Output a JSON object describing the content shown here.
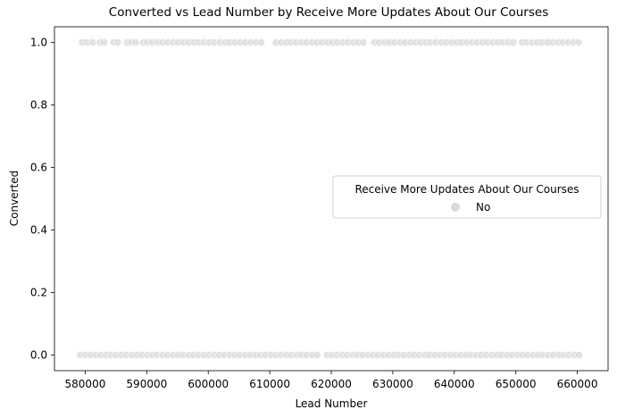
{
  "chart_data": {
    "type": "scatter",
    "title": "Converted vs Lead Number by Receive More Updates About Our Courses",
    "xlabel": "Lead Number",
    "ylabel": "Converted",
    "xlim": [
      575000,
      665000
    ],
    "ylim": [
      -0.05,
      1.05
    ],
    "xticks": [
      580000,
      590000,
      600000,
      610000,
      620000,
      630000,
      640000,
      650000,
      660000
    ],
    "yticks": [
      0.0,
      0.2,
      0.4,
      0.6,
      0.8,
      1.0
    ],
    "xtick_labels": [
      "580000",
      "590000",
      "600000",
      "610000",
      "620000",
      "630000",
      "640000",
      "650000",
      "660000"
    ],
    "ytick_labels": [
      "0.0",
      "0.2",
      "0.4",
      "0.6",
      "0.8",
      "1.0"
    ],
    "grid": false,
    "legend": {
      "title": "Receive More Updates About Our Courses",
      "placement": "center-right",
      "entries": [
        "No"
      ]
    },
    "series": [
      {
        "name": "No",
        "color": "#d9d9d9",
        "points_y1_x": [
          579500,
          580300,
          581200,
          582400,
          583100,
          584600,
          585300,
          586800,
          587500,
          588200,
          589400,
          590100,
          590900,
          591800,
          592600,
          593400,
          594300,
          595100,
          596000,
          596800,
          597700,
          598500,
          599300,
          600200,
          601000,
          601900,
          602700,
          603500,
          604400,
          605200,
          606000,
          606900,
          607700,
          608600,
          611000,
          611800,
          612700,
          613500,
          614300,
          615200,
          616000,
          616900,
          617700,
          618500,
          619400,
          620200,
          621000,
          621900,
          622700,
          623600,
          624400,
          625200,
          627000,
          627800,
          628700,
          629500,
          630300,
          631200,
          632000,
          632900,
          633700,
          634500,
          635400,
          636200,
          637000,
          637900,
          638700,
          639600,
          640400,
          641200,
          642100,
          642900,
          643700,
          644600,
          645400,
          646300,
          647100,
          647900,
          648800,
          649600,
          651000,
          651800,
          652700,
          653500,
          654300,
          655200,
          656000,
          656900,
          657700,
          658500,
          659400,
          660200
        ],
        "points_y0_x": [
          579200,
          580000,
          580900,
          581700,
          582500,
          583400,
          584200,
          585000,
          585900,
          586700,
          587600,
          588400,
          589200,
          590100,
          590900,
          591700,
          592600,
          593400,
          594300,
          595100,
          595900,
          596800,
          597600,
          598400,
          599300,
          600100,
          601000,
          601800,
          602600,
          603500,
          604300,
          605100,
          606000,
          606800,
          607700,
          608500,
          609300,
          610200,
          611000,
          611800,
          612700,
          613500,
          614400,
          615200,
          616000,
          616900,
          617700,
          619300,
          620100,
          620900,
          621800,
          622600,
          623500,
          624300,
          625100,
          626000,
          626800,
          627600,
          628500,
          629300,
          630200,
          631000,
          631800,
          632700,
          633500,
          634300,
          635200,
          636000,
          636900,
          637700,
          638500,
          639400,
          640200,
          641000,
          641900,
          642700,
          643600,
          644400,
          645200,
          646100,
          646900,
          647700,
          648600,
          649400,
          650300,
          651100,
          651900,
          652800,
          653600,
          654400,
          655300,
          656100,
          657000,
          657800,
          658600,
          659500,
          660300
        ]
      }
    ]
  }
}
